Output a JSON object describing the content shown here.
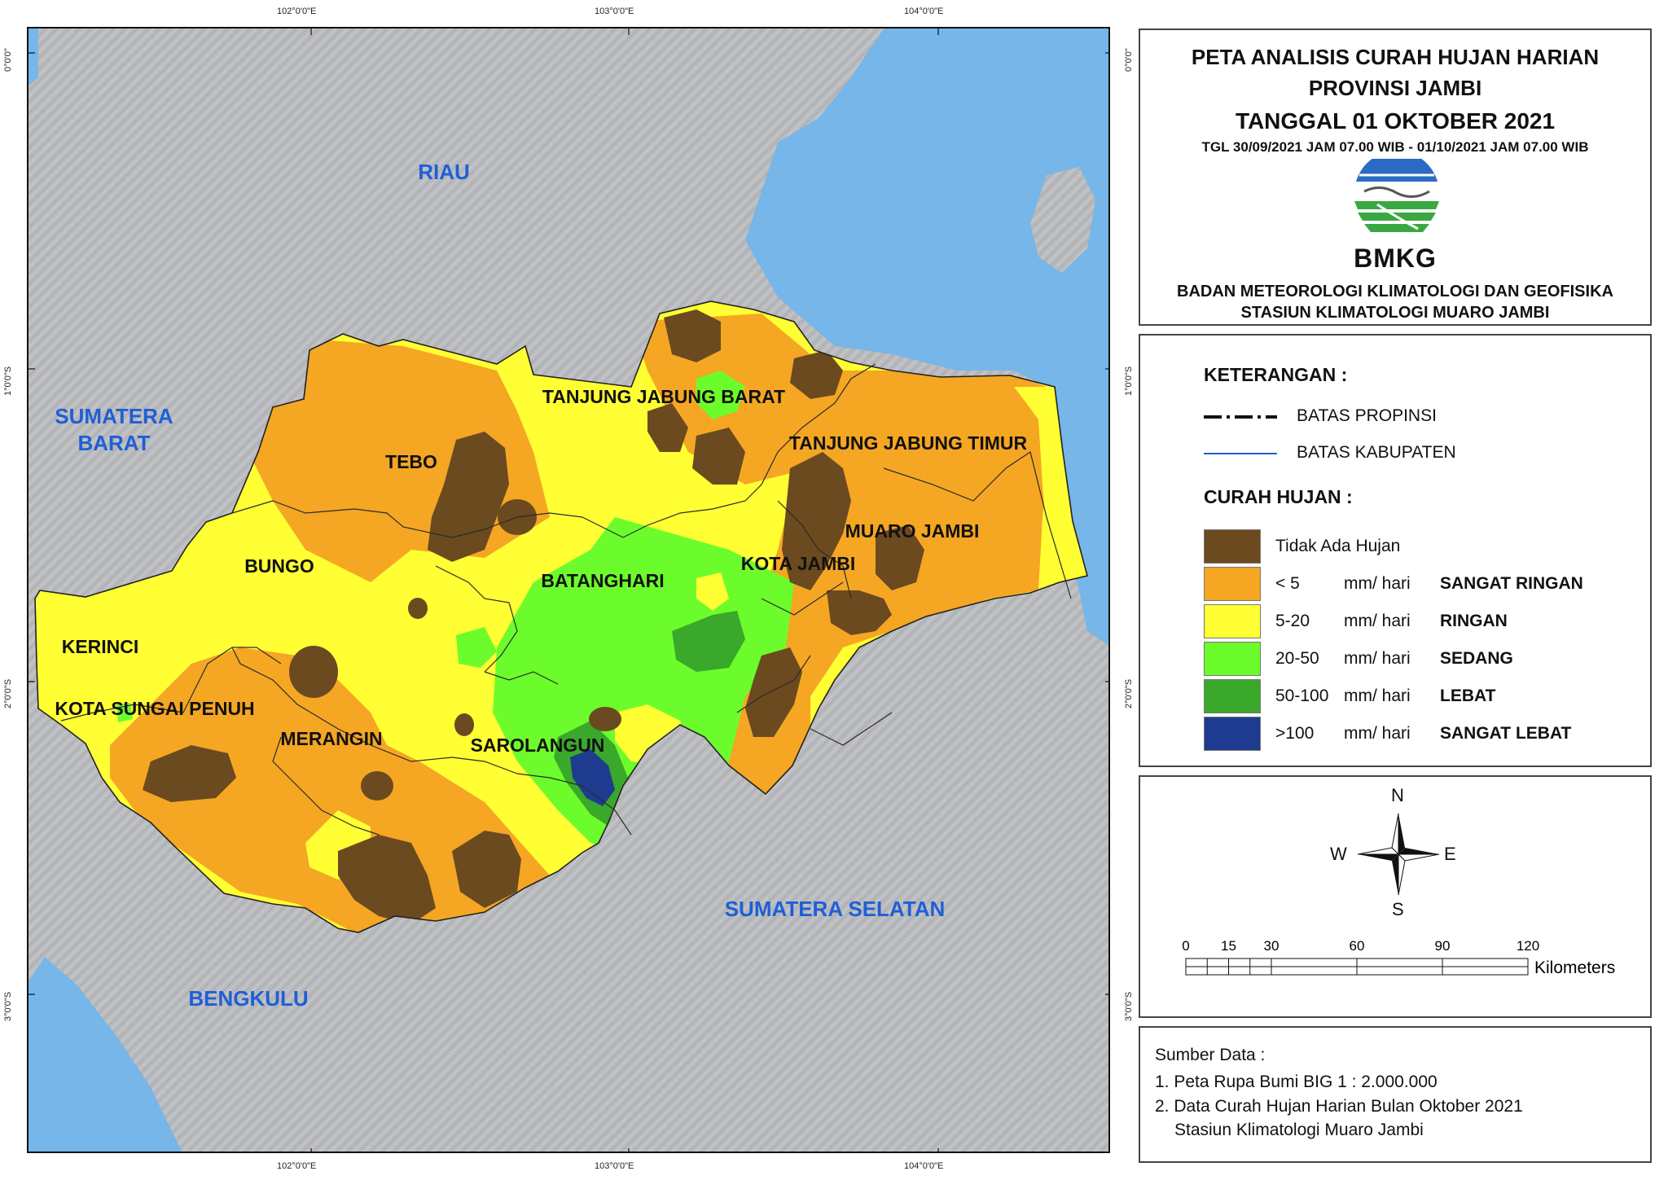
{
  "title": {
    "line1": "PETA ANALISIS CURAH HUJAN HARIAN",
    "line2": "PROVINSI JAMBI",
    "line3": "TANGGAL 01 OKTOBER 2021",
    "period": "TGL 30/09/2021 JAM 07.00 WIB - 01/10/2021 JAM 07.00 WIB",
    "org_short": "BMKG",
    "org_line1": "BADAN METEOROLOGI KLIMATOLOGI DAN GEOFISIKA",
    "org_line2": "STASIUN KLIMATOLOGI MUARO JAMBI"
  },
  "grid_labels": {
    "lon": [
      "102°0'0\"E",
      "103°0'0\"E",
      "104°0'0\"E"
    ],
    "lat": [
      "0°0'0\"",
      "1°0'0\"S",
      "2°0'0\"S",
      "3°0'0\"S"
    ]
  },
  "map_labels": {
    "provinces": [
      "RIAU",
      "SUMATERA",
      "BARAT",
      "SUMATERA SELATAN",
      "BENGKULU"
    ],
    "districts": [
      "TANJUNG JABUNG BARAT",
      "TANJUNG JABUNG TIMUR",
      "TEBO",
      "MUARO JAMBI",
      "BUNGO",
      "KOTA JAMBI",
      "BATANGHARI",
      "KERINCI",
      "KOTA SUNGAI PENUH",
      "MERANGIN",
      "SAROLANGUN"
    ]
  },
  "legend": {
    "heading": "KETERANGAN :",
    "lines": [
      {
        "label": "BATAS PROPINSI"
      },
      {
        "label": "BATAS KABUPATEN"
      }
    ],
    "rain_heading": "CURAH HUJAN :",
    "classes": [
      {
        "range": "Tidak Ada Hujan",
        "unit": "",
        "category": "",
        "color": "#6b4a1f"
      },
      {
        "range": "< 5",
        "unit": "mm/ hari",
        "category": "SANGAT RINGAN",
        "color": "#f5a623"
      },
      {
        "range": "5-20",
        "unit": "mm/ hari",
        "category": "RINGAN",
        "color": "#ffff33"
      },
      {
        "range": "20-50",
        "unit": "mm/ hari",
        "category": "SEDANG",
        "color": "#6dfc2b"
      },
      {
        "range": "50-100",
        "unit": "mm/ hari",
        "category": "LEBAT",
        "color": "#3aa82a"
      },
      {
        "range": ">100",
        "unit": "mm/ hari",
        "category": "SANGAT LEBAT",
        "color": "#1f3b8f"
      }
    ]
  },
  "compass": {
    "n": "N",
    "s": "S",
    "e": "E",
    "w": "W"
  },
  "scale": {
    "ticks": [
      "0",
      "15",
      "30",
      "60",
      "90",
      "120"
    ],
    "unit": "Kilometers"
  },
  "source": {
    "heading": "Sumber Data :",
    "items": [
      "1. Peta Rupa Bumi BIG 1 : 2.000.000",
      "2. Data Curah Hujan Harian Bulan Oktober 2021",
      "Stasiun Klimatologi Muaro Jambi"
    ]
  },
  "colors": {
    "sea": "#76b6e8",
    "land": "#b9bbbe",
    "province_label": "#1f5fd6",
    "district_label": "#111111"
  }
}
